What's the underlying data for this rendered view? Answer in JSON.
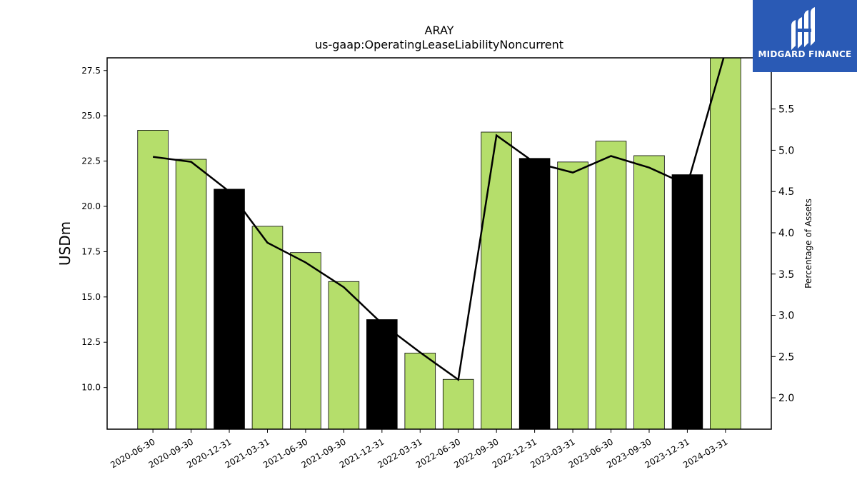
{
  "chart_data": {
    "type": "bar",
    "title": "ARAY",
    "subtitle": "us-gaap:OperatingLeaseLiabilityNoncurrent",
    "ylabel": "USDm",
    "y2label": "Percentage of Assets",
    "ylim": [
      7.7,
      28.2
    ],
    "y2lim": [
      1.62,
      6.12
    ],
    "yticks": [
      "10.0",
      "12.5",
      "15.0",
      "17.5",
      "20.0",
      "22.5",
      "25.0",
      "27.5"
    ],
    "y2ticks": [
      "2.0",
      "2.5",
      "3.0",
      "3.5",
      "4.0",
      "4.5",
      "5.0",
      "5.5"
    ],
    "categories": [
      "2020-06-30",
      "2020-09-30",
      "2020-12-31",
      "2021-03-31",
      "2021-06-30",
      "2021-09-30",
      "2021-12-31",
      "2022-03-31",
      "2022-06-30",
      "2022-09-30",
      "2022-12-31",
      "2023-03-31",
      "2023-06-30",
      "2023-09-30",
      "2023-12-31",
      "2024-03-31"
    ],
    "series": [
      {
        "type": "bar",
        "axis": "left",
        "values": [
          24.2,
          22.6,
          20.95,
          18.9,
          17.45,
          15.85,
          13.75,
          11.9,
          10.45,
          24.1,
          22.65,
          22.45,
          23.6,
          22.8,
          21.75,
          28.4
        ],
        "colors": [
          "#b5de6b",
          "#b5de6b",
          "#000000",
          "#b5de6b",
          "#b5de6b",
          "#b5de6b",
          "#000000",
          "#b5de6b",
          "#b5de6b",
          "#b5de6b",
          "#000000",
          "#b5de6b",
          "#b5de6b",
          "#b5de6b",
          "#000000",
          "#b5de6b"
        ]
      },
      {
        "type": "line",
        "axis": "right",
        "color": "#000000",
        "values": [
          4.92,
          4.86,
          4.5,
          3.88,
          3.64,
          3.34,
          2.9,
          2.55,
          2.22,
          5.18,
          4.85,
          4.73,
          4.93,
          4.79,
          4.58,
          6.2
        ]
      }
    ],
    "grid": false,
    "legend": "none"
  },
  "logo": {
    "brand": "MIDGARD FINANCE"
  }
}
